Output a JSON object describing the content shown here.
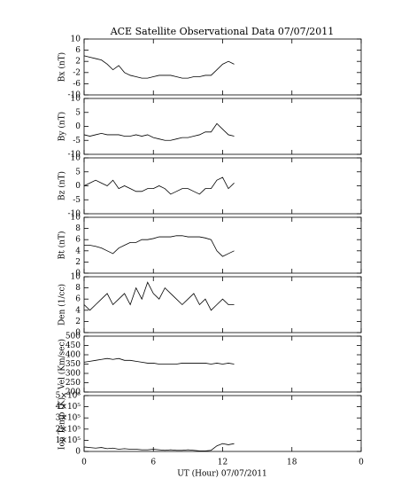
{
  "title": "ACE Satellite Observational Data   07/07/2011",
  "x_label": "UT (Hour)   07/07/2011",
  "xlim": [
    0,
    24
  ],
  "xticks": [
    0,
    6,
    12,
    18,
    {
      "value": 24,
      "label": "0"
    }
  ],
  "x": [
    0,
    0.5,
    1,
    1.5,
    2,
    2.5,
    3,
    3.5,
    4,
    4.5,
    5,
    5.5,
    6,
    6.5,
    7,
    7.5,
    8,
    8.5,
    9,
    9.5,
    10,
    10.5,
    11,
    11.5,
    12,
    12.5,
    13
  ],
  "chart_data": [
    {
      "type": "line",
      "y_label": "Bx (nT)",
      "ylim": [
        -10,
        10
      ],
      "yticks": [
        -10,
        -6,
        -2,
        2,
        6,
        10
      ],
      "values": [
        4,
        3.5,
        3,
        2.5,
        1,
        -1,
        0.5,
        -2,
        -3,
        -3.5,
        -4,
        -4,
        -3.5,
        -3,
        -3,
        -3,
        -3.5,
        -4,
        -4,
        -3.5,
        -3.5,
        -3,
        -3,
        -1,
        1,
        2,
        1
      ]
    },
    {
      "type": "line",
      "y_label": "By (nT)",
      "ylim": [
        -10,
        10
      ],
      "yticks": [
        -10,
        -5,
        0,
        5,
        10
      ],
      "values": [
        -3,
        -3.5,
        -3,
        -2.5,
        -3,
        -3,
        -3,
        -3.5,
        -3.5,
        -3,
        -3.5,
        -3,
        -4,
        -4.5,
        -5,
        -5,
        -4.5,
        -4,
        -4,
        -3.5,
        -3,
        -2,
        -2,
        1,
        -1,
        -3,
        -3.5
      ]
    },
    {
      "type": "line",
      "y_label": "Bz (nT)",
      "ylim": [
        -10,
        10
      ],
      "yticks": [
        -10,
        -5,
        0,
        5,
        10
      ],
      "values": [
        0,
        1,
        2,
        1,
        0,
        2,
        -1,
        0,
        -1,
        -2,
        -2,
        -1,
        -1,
        0,
        -1,
        -3,
        -2,
        -1,
        -1,
        -2,
        -3,
        -1,
        -1,
        2,
        3,
        -1,
        1
      ]
    },
    {
      "type": "line",
      "y_label": "Bt (nT)",
      "ylim": [
        0,
        10
      ],
      "yticks": [
        0,
        2,
        4,
        6,
        8,
        10
      ],
      "values": [
        5,
        5,
        4.8,
        4.5,
        4,
        3.5,
        4.5,
        5,
        5.5,
        5.5,
        6,
        6,
        6.2,
        6.5,
        6.5,
        6.5,
        6.7,
        6.7,
        6.5,
        6.5,
        6.5,
        6.3,
        6,
        4,
        3,
        3.5,
        4
      ]
    },
    {
      "type": "line",
      "y_label": "Den (1/cc)",
      "ylim": [
        0,
        10
      ],
      "yticks": [
        0,
        2,
        4,
        6,
        8,
        10
      ],
      "values": [
        5,
        4,
        5,
        6,
        7,
        5,
        6,
        7,
        5,
        8,
        6,
        9,
        7,
        6,
        8,
        7,
        6,
        5,
        6,
        7,
        5,
        6,
        4,
        5,
        6,
        5,
        5
      ]
    },
    {
      "type": "line",
      "y_label": "Vel (Km/sec)",
      "ylim": [
        200,
        500
      ],
      "yticks": [
        200,
        250,
        300,
        350,
        400,
        450,
        500
      ],
      "values": [
        360,
        365,
        370,
        375,
        380,
        375,
        380,
        370,
        370,
        365,
        360,
        355,
        355,
        350,
        350,
        350,
        350,
        355,
        355,
        355,
        355,
        355,
        350,
        355,
        350,
        355,
        350
      ]
    },
    {
      "type": "line",
      "y_label": "Ion Temp (K)",
      "ylim": [
        0,
        500000
      ],
      "yticks": [
        0,
        {
          "value": 100000,
          "label": "1×10⁵"
        },
        {
          "value": 200000,
          "label": "2×10⁵"
        },
        {
          "value": 300000,
          "label": "3×10⁵"
        },
        {
          "value": 400000,
          "label": "4×10⁵"
        },
        {
          "value": 500000,
          "label": "5×10⁵"
        }
      ],
      "values": [
        40000,
        35000,
        30000,
        35000,
        25000,
        30000,
        20000,
        25000,
        20000,
        20000,
        15000,
        15000,
        20000,
        15000,
        10000,
        15000,
        10000,
        10000,
        15000,
        10000,
        5000,
        5000,
        10000,
        50000,
        70000,
        60000,
        70000
      ]
    }
  ]
}
